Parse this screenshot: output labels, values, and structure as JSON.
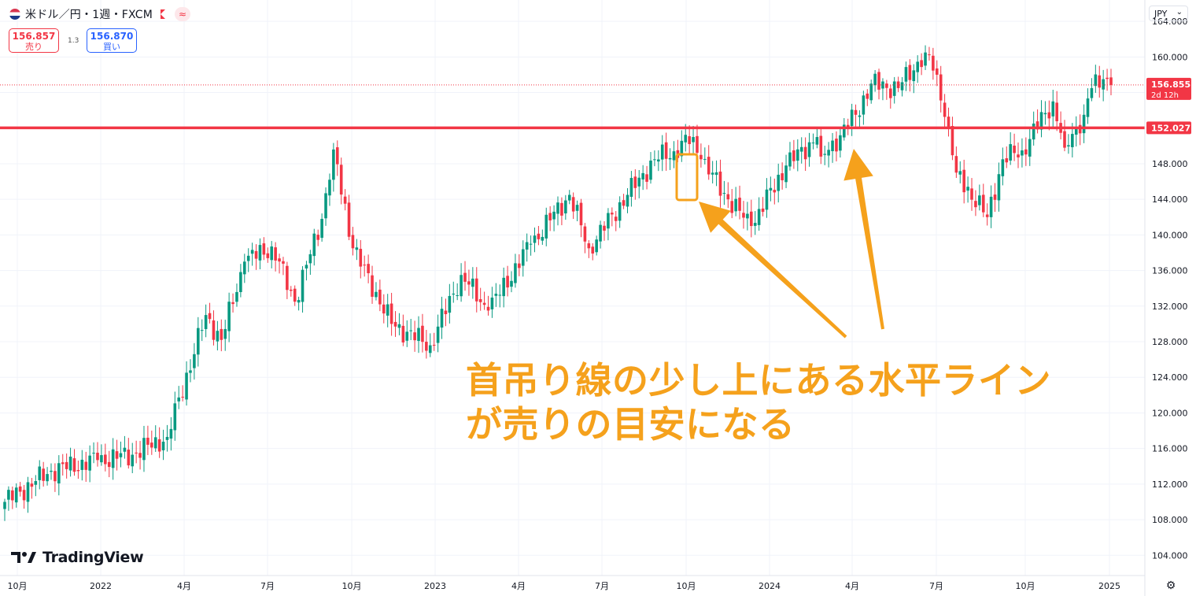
{
  "header": {
    "title": "米ドル／円・1週・FXCM",
    "indicator_label": "≈"
  },
  "trade": {
    "sell_price": "156.857",
    "sell_label": "売り",
    "spread": "1.3",
    "buy_price": "156.870",
    "buy_label": "買い"
  },
  "currency_selector": {
    "value": "JPY"
  },
  "brand": "TradingView",
  "annotation": {
    "line1": "首吊り線の少し上にある水平ライン",
    "line2": "が売りの目安になる"
  },
  "colors": {
    "up": "#089981",
    "down": "#f23645",
    "hline": "#f23645",
    "annotation": "#f5a11c",
    "grid": "#f0f3fa"
  },
  "chart_data": {
    "type": "candlestick",
    "symbol": "USD/JPY",
    "timeframe": "1W",
    "x_ticks": [
      "10月",
      "2022",
      "4月",
      "7月",
      "10月",
      "2023",
      "4月",
      "7月",
      "10月",
      "2024",
      "4月",
      "7月",
      "10月",
      "2025"
    ],
    "y_ticks": [
      "104.000",
      "108.000",
      "112.000",
      "116.000",
      "120.000",
      "124.000",
      "128.000",
      "132.000",
      "136.000",
      "140.000",
      "144.000",
      "148.000",
      "152.000",
      "156.000",
      "160.000",
      "164.000"
    ],
    "ylim": [
      103.5,
      166.0
    ],
    "last_price": {
      "value": "156.855",
      "countdown": "2d 12h"
    },
    "horizontal_line": {
      "value": "152.027"
    },
    "highlight_period": "2023年10月",
    "path_points": [
      [
        0,
        110.0
      ],
      [
        12,
        113.5
      ],
      [
        24,
        114.7
      ],
      [
        33,
        115.3
      ],
      [
        42,
        117.3
      ],
      [
        52,
        131.0
      ],
      [
        56,
        128.2
      ],
      [
        62,
        137.0
      ],
      [
        69,
        138.7
      ],
      [
        75,
        132.5
      ],
      [
        82,
        141.8
      ],
      [
        85,
        149.6
      ],
      [
        90,
        138.5
      ],
      [
        100,
        130.0
      ],
      [
        110,
        127.6
      ],
      [
        118,
        135.5
      ],
      [
        125,
        131.5
      ],
      [
        136,
        139.0
      ],
      [
        146,
        144.5
      ],
      [
        151,
        138.5
      ],
      [
        161,
        144.5
      ],
      [
        168,
        148.5
      ],
      [
        173,
        149.4
      ],
      [
        178,
        151.0
      ],
      [
        180,
        148.5
      ],
      [
        187,
        144.0
      ],
      [
        193,
        141.0
      ],
      [
        202,
        147.8
      ],
      [
        210,
        151.0
      ],
      [
        211,
        148.8
      ],
      [
        216,
        151.2
      ],
      [
        220,
        153.5
      ],
      [
        224,
        157.0
      ],
      [
        231,
        156.5
      ],
      [
        238,
        160.5
      ],
      [
        241,
        158.0
      ],
      [
        244,
        152.0
      ],
      [
        246,
        147.0
      ],
      [
        254,
        142.0
      ],
      [
        258,
        148.5
      ],
      [
        263,
        149.5
      ],
      [
        271,
        155.0
      ],
      [
        274,
        149.8
      ],
      [
        279,
        153.5
      ],
      [
        281,
        156.5
      ],
      [
        284,
        157.5
      ],
      [
        286,
        156.855
      ]
    ]
  }
}
